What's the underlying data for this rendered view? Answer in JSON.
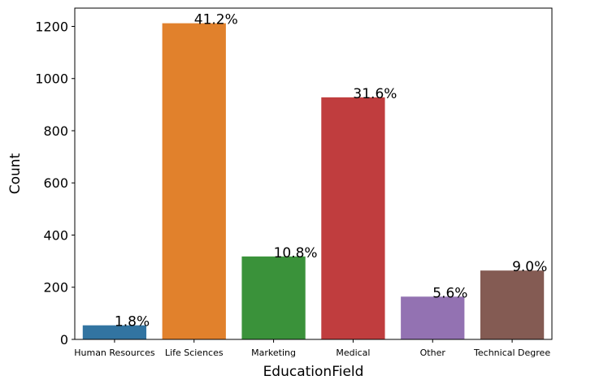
{
  "chart_data": {
    "type": "bar",
    "xlabel": "EducationField",
    "ylabel": "Count",
    "ylim": [
      0,
      1270
    ],
    "yticks": [
      0,
      200,
      400,
      600,
      800,
      1000,
      1200
    ],
    "grid": false,
    "categories": [
      "Human Resources",
      "Life Sciences",
      "Marketing",
      "Medical",
      "Other",
      "Technical Degree"
    ],
    "values": [
      54,
      1212,
      318,
      928,
      164,
      264
    ],
    "data_labels": [
      "1.8%",
      "41.2%",
      "10.8%",
      "31.6%",
      "5.6%",
      "9.0%"
    ],
    "colors": [
      "#3274a1",
      "#e1812c",
      "#3a923a",
      "#c03d3e",
      "#9372b2",
      "#845b53"
    ]
  }
}
